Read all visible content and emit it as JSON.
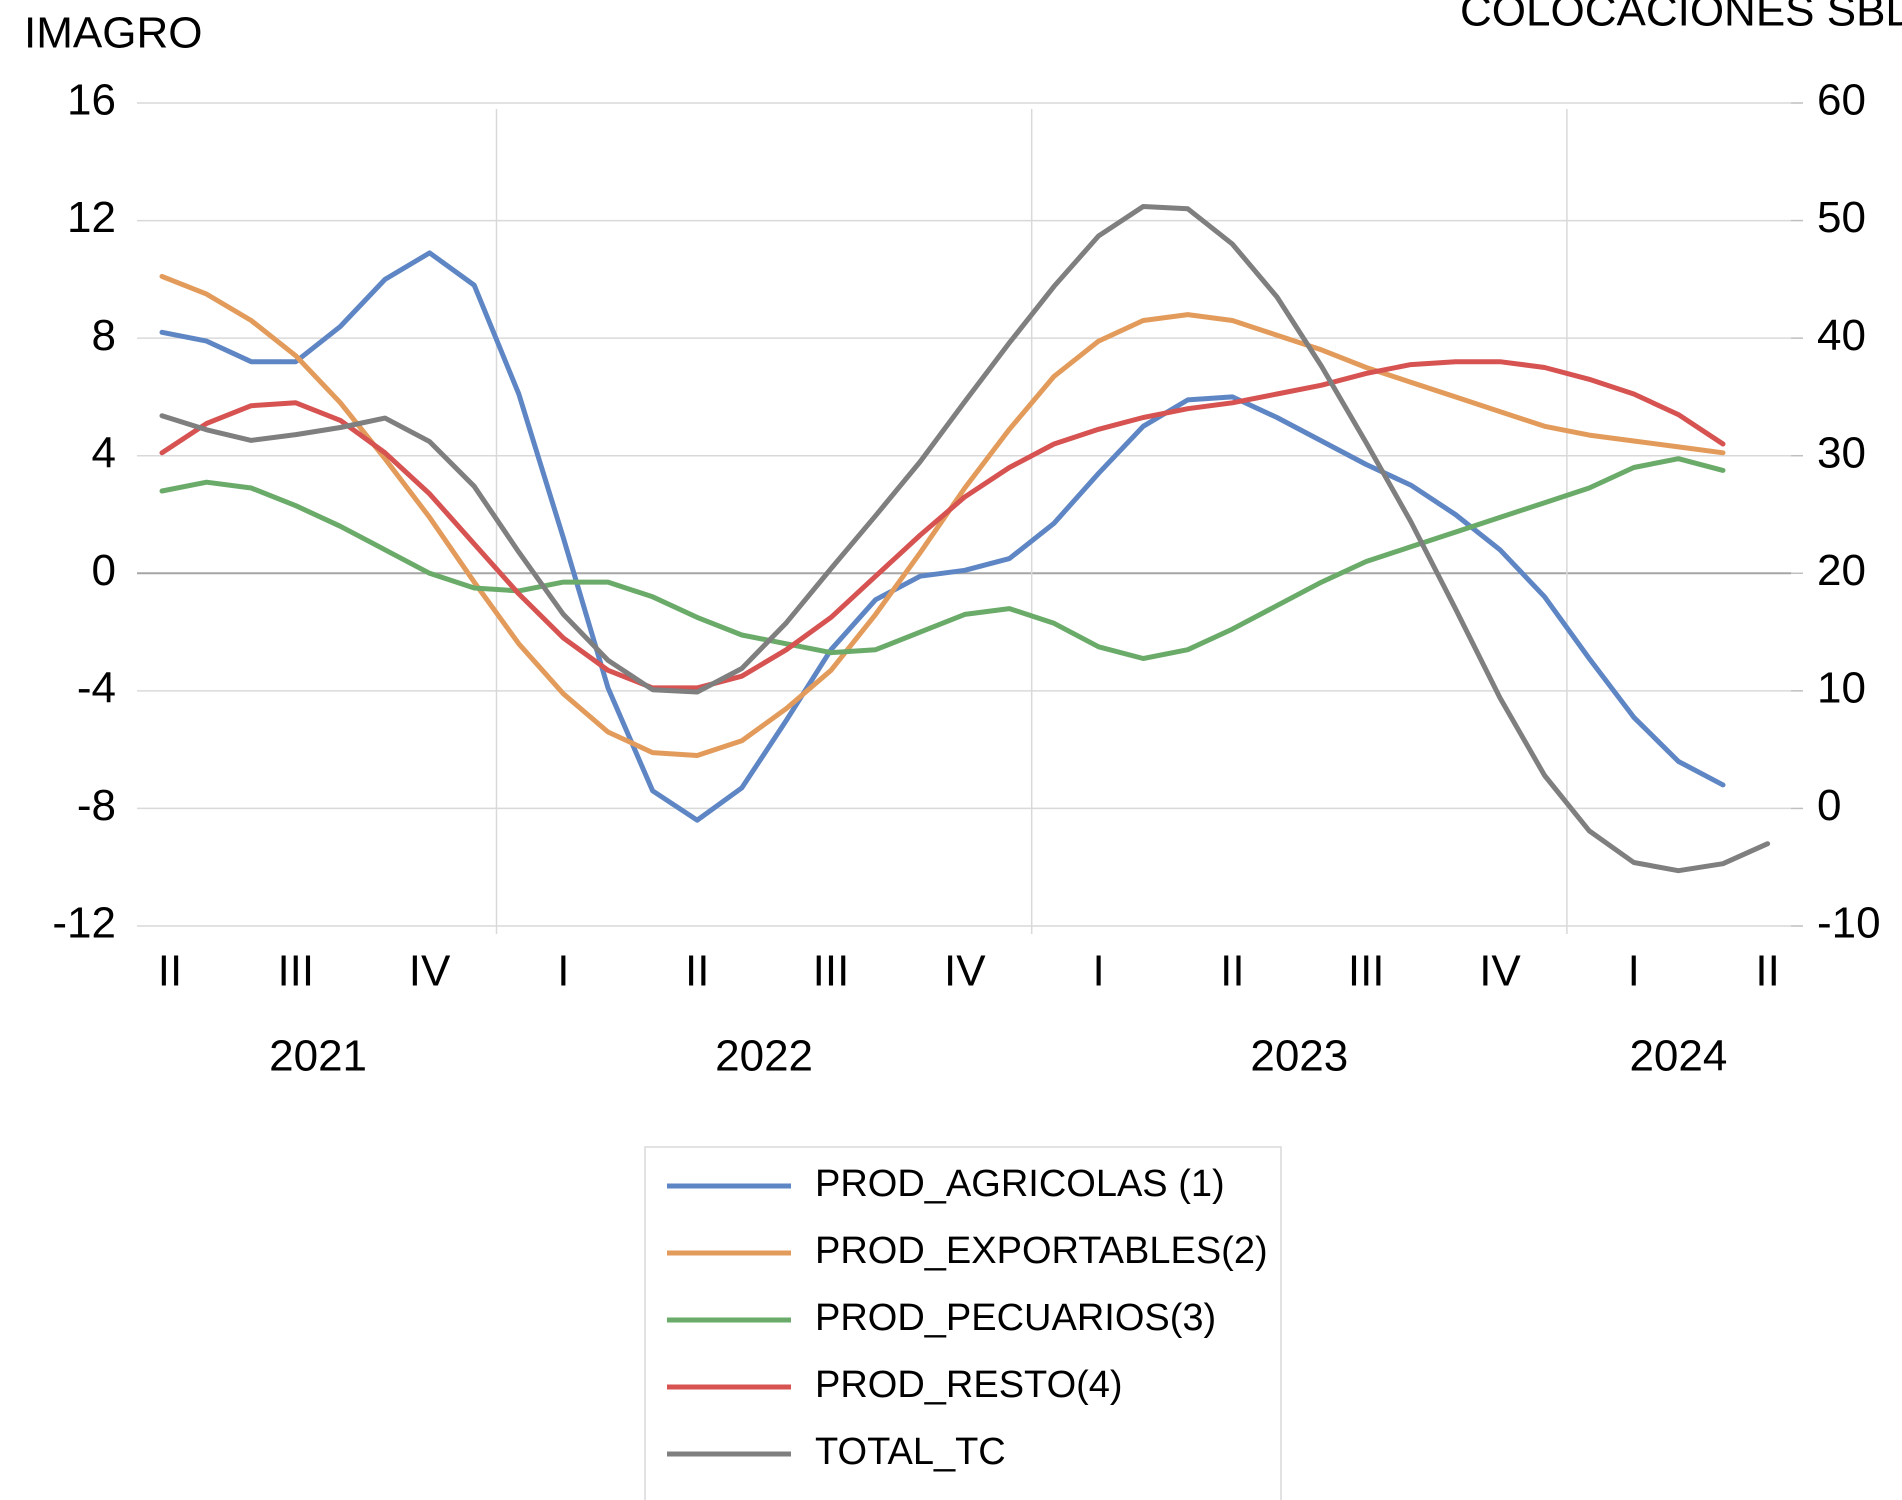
{
  "chart_data": {
    "type": "line",
    "y_label": "IMAGRO",
    "y2_label": "COLOCACIONES SBD",
    "categories": [
      "II",
      null,
      null,
      "III",
      null,
      null,
      "IV",
      null,
      null,
      "I",
      null,
      null,
      "II",
      null,
      null,
      "III",
      null,
      null,
      "IV",
      null,
      null,
      "I",
      null,
      null,
      "II",
      null,
      null,
      "III",
      null,
      null,
      "IV",
      null,
      null,
      "I",
      null,
      null,
      "II"
    ],
    "year_groups": [
      {
        "label": "2021",
        "count": 8
      },
      {
        "label": "2022",
        "count": 12
      },
      {
        "label": "2023",
        "count": 12
      },
      {
        "label": "2024",
        "count": 5
      }
    ],
    "ylim": [
      -12,
      16
    ],
    "yticks": [
      -12,
      -8,
      -4,
      0,
      4,
      8,
      12,
      16
    ],
    "y2lim": [
      -10,
      60
    ],
    "y2ticks": [
      -10,
      0,
      10,
      20,
      30,
      40,
      50,
      60
    ],
    "grid": true,
    "legend": "bottom",
    "series": [
      {
        "name": "PROD_AGRICOLAS (1)",
        "color": "#5f86c4",
        "values": [
          8.2,
          7.9,
          7.2,
          7.2,
          8.4,
          10.0,
          10.9,
          9.8,
          6.1,
          1.2,
          -3.9,
          -7.4,
          -8.4,
          -7.3,
          -5.0,
          -2.6,
          -0.9,
          -0.1,
          0.1,
          0.5,
          1.7,
          3.4,
          5.0,
          5.9,
          6.0,
          5.3,
          4.5,
          3.7,
          3.0,
          2.0,
          0.8,
          -0.8,
          -2.9,
          -4.9,
          -6.4,
          -7.2,
          null
        ]
      },
      {
        "name": "PROD_EXPORTABLES(2)",
        "color": "#e39b5b",
        "values": [
          10.1,
          9.5,
          8.6,
          7.4,
          5.8,
          3.9,
          1.9,
          -0.3,
          -2.4,
          -4.1,
          -5.4,
          -6.1,
          -6.2,
          -5.7,
          -4.6,
          -3.3,
          -1.4,
          0.7,
          2.9,
          4.9,
          6.7,
          7.9,
          8.6,
          8.8,
          8.6,
          8.1,
          7.6,
          7.0,
          6.5,
          6.0,
          5.5,
          5.0,
          4.7,
          4.5,
          4.3,
          4.1,
          null
        ]
      },
      {
        "name": "PROD_PECUARIOS(3)",
        "color": "#6aab6a",
        "values": [
          2.8,
          3.1,
          2.9,
          2.3,
          1.6,
          0.8,
          0.0,
          -0.5,
          -0.6,
          -0.3,
          -0.3,
          -0.8,
          -1.5,
          -2.1,
          -2.4,
          -2.7,
          -2.6,
          -2.0,
          -1.4,
          -1.2,
          -1.7,
          -2.5,
          -2.9,
          -2.6,
          -1.9,
          -1.1,
          -0.3,
          0.4,
          0.9,
          1.4,
          1.9,
          2.4,
          2.9,
          3.6,
          3.9,
          3.5,
          null
        ]
      },
      {
        "name": "PROD_RESTO(4)",
        "color": "#d65352",
        "values": [
          4.1,
          5.1,
          5.7,
          5.8,
          5.2,
          4.1,
          2.7,
          1.0,
          -0.7,
          -2.2,
          -3.3,
          -3.9,
          -3.9,
          -3.5,
          -2.6,
          -1.5,
          -0.1,
          1.3,
          2.6,
          3.6,
          4.4,
          4.9,
          5.3,
          5.6,
          5.8,
          6.1,
          6.4,
          6.8,
          7.1,
          7.2,
          7.2,
          7.0,
          6.6,
          6.1,
          5.4,
          4.4,
          null
        ]
      },
      {
        "name": "TOTAL_TC",
        "color": "#7f7f7f",
        "axis": "y2",
        "values": [
          33.4,
          32.2,
          31.3,
          31.8,
          32.4,
          33.2,
          31.2,
          27.4,
          21.8,
          16.5,
          12.6,
          10.1,
          9.9,
          11.9,
          15.8,
          20.4,
          24.9,
          29.5,
          34.6,
          39.6,
          44.4,
          48.7,
          51.2,
          51.0,
          48.0,
          43.5,
          37.6,
          31.1,
          24.4,
          17.0,
          9.4,
          2.8,
          -1.9,
          -4.6,
          -5.3,
          -4.7,
          -3.0
        ]
      }
    ]
  }
}
